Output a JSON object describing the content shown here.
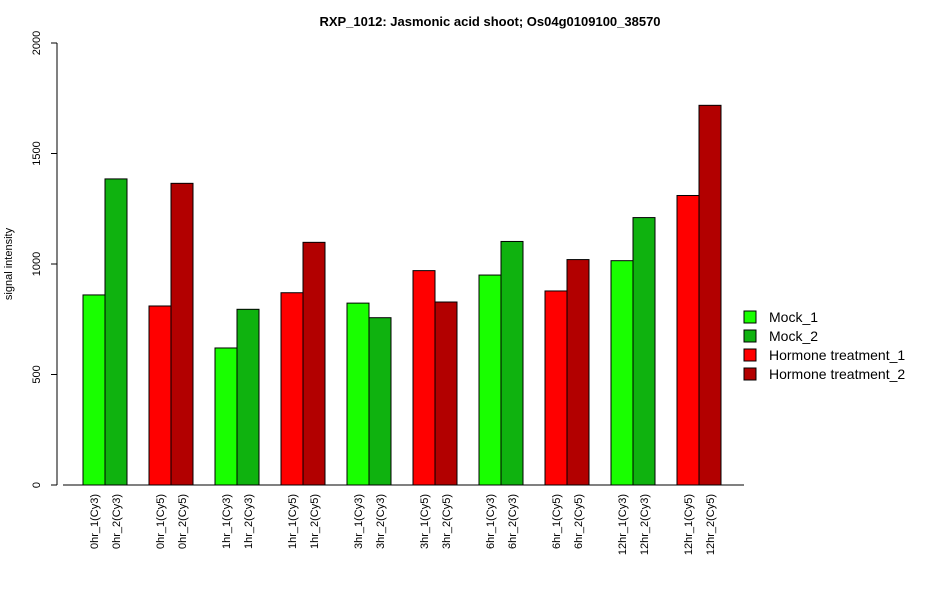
{
  "chart_data": {
    "type": "bar",
    "title": "RXP_1012: Jasmonic acid shoot; Os04g0109100_38570",
    "xlabel": "",
    "ylabel": "signal intensity",
    "ylim": [
      0,
      2000
    ],
    "yticks": [
      0,
      500,
      1000,
      1500,
      2000
    ],
    "grid": false,
    "legend_position": "right",
    "groups": [
      {
        "bars": [
          {
            "label": "0hr_1(Cy3)",
            "value": 860,
            "series": 0
          },
          {
            "label": "0hr_2(Cy3)",
            "value": 1385,
            "series": 1
          }
        ]
      },
      {
        "bars": [
          {
            "label": "0hr_1(Cy5)",
            "value": 810,
            "series": 2
          },
          {
            "label": "0hr_2(Cy5)",
            "value": 1365,
            "series": 3
          }
        ]
      },
      {
        "bars": [
          {
            "label": "1hr_1(Cy3)",
            "value": 620,
            "series": 0
          },
          {
            "label": "1hr_2(Cy3)",
            "value": 795,
            "series": 1
          }
        ]
      },
      {
        "bars": [
          {
            "label": "1hr_1(Cy5)",
            "value": 870,
            "series": 2
          },
          {
            "label": "1hr_2(Cy5)",
            "value": 1098,
            "series": 3
          }
        ]
      },
      {
        "bars": [
          {
            "label": "3hr_1(Cy3)",
            "value": 823,
            "series": 0
          },
          {
            "label": "3hr_2(Cy3)",
            "value": 757,
            "series": 1
          }
        ]
      },
      {
        "bars": [
          {
            "label": "3hr_1(Cy5)",
            "value": 970,
            "series": 2
          },
          {
            "label": "3hr_2(Cy5)",
            "value": 828,
            "series": 3
          }
        ]
      },
      {
        "bars": [
          {
            "label": "6hr_1(Cy3)",
            "value": 950,
            "series": 0
          },
          {
            "label": "6hr_2(Cy3)",
            "value": 1102,
            "series": 1
          }
        ]
      },
      {
        "bars": [
          {
            "label": "6hr_1(Cy5)",
            "value": 878,
            "series": 2
          },
          {
            "label": "6hr_2(Cy5)",
            "value": 1020,
            "series": 3
          }
        ]
      },
      {
        "bars": [
          {
            "label": "12hr_1(Cy3)",
            "value": 1015,
            "series": 0
          },
          {
            "label": "12hr_2(Cy3)",
            "value": 1210,
            "series": 1
          }
        ]
      },
      {
        "bars": [
          {
            "label": "12hr_1(Cy5)",
            "value": 1310,
            "series": 2
          },
          {
            "label": "12hr_2(Cy5)",
            "value": 1718,
            "series": 3
          }
        ]
      }
    ],
    "legend": [
      {
        "name": "Mock_1",
        "color": "#19ff00"
      },
      {
        "name": "Mock_2",
        "color": "#0fb20f"
      },
      {
        "name": "Hormone treatment_1",
        "color": "#ff0000"
      },
      {
        "name": "Hormone treatment_2",
        "color": "#b20000"
      }
    ]
  }
}
